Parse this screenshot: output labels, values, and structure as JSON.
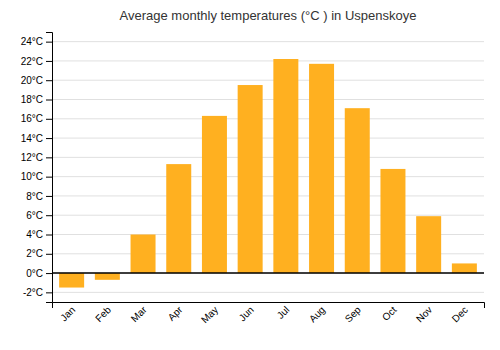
{
  "chart_data": {
    "type": "bar",
    "title": "Average monthly temperatures (°C ) in Uspenskoye",
    "categories": [
      "Jan",
      "Feb",
      "Mar",
      "Apr",
      "May",
      "Jun",
      "Jul",
      "Aug",
      "Sep",
      "Oct",
      "Nov",
      "Dec"
    ],
    "values": [
      -1.5,
      -0.7,
      4.0,
      11.3,
      16.3,
      19.5,
      22.2,
      21.7,
      17.1,
      10.8,
      5.9,
      1.0
    ],
    "color": "#FFB020",
    "ylim": [
      -3,
      25
    ],
    "yticks": [
      {
        "value": -2,
        "label": "-2°C"
      },
      {
        "value": 0,
        "label": "0°C"
      },
      {
        "value": 2,
        "label": "2°C"
      },
      {
        "value": 4,
        "label": "4°C"
      },
      {
        "value": 6,
        "label": "6°C"
      },
      {
        "value": 8,
        "label": "8°C"
      },
      {
        "value": 10,
        "label": "10°C"
      },
      {
        "value": 12,
        "label": "12°C"
      },
      {
        "value": 14,
        "label": "14°C"
      },
      {
        "value": 16,
        "label": "16°C"
      },
      {
        "value": 18,
        "label": "18°C"
      },
      {
        "value": 20,
        "label": "20°C"
      },
      {
        "value": 22,
        "label": "22°C"
      },
      {
        "value": 24,
        "label": "24°C"
      }
    ],
    "grid": true
  }
}
